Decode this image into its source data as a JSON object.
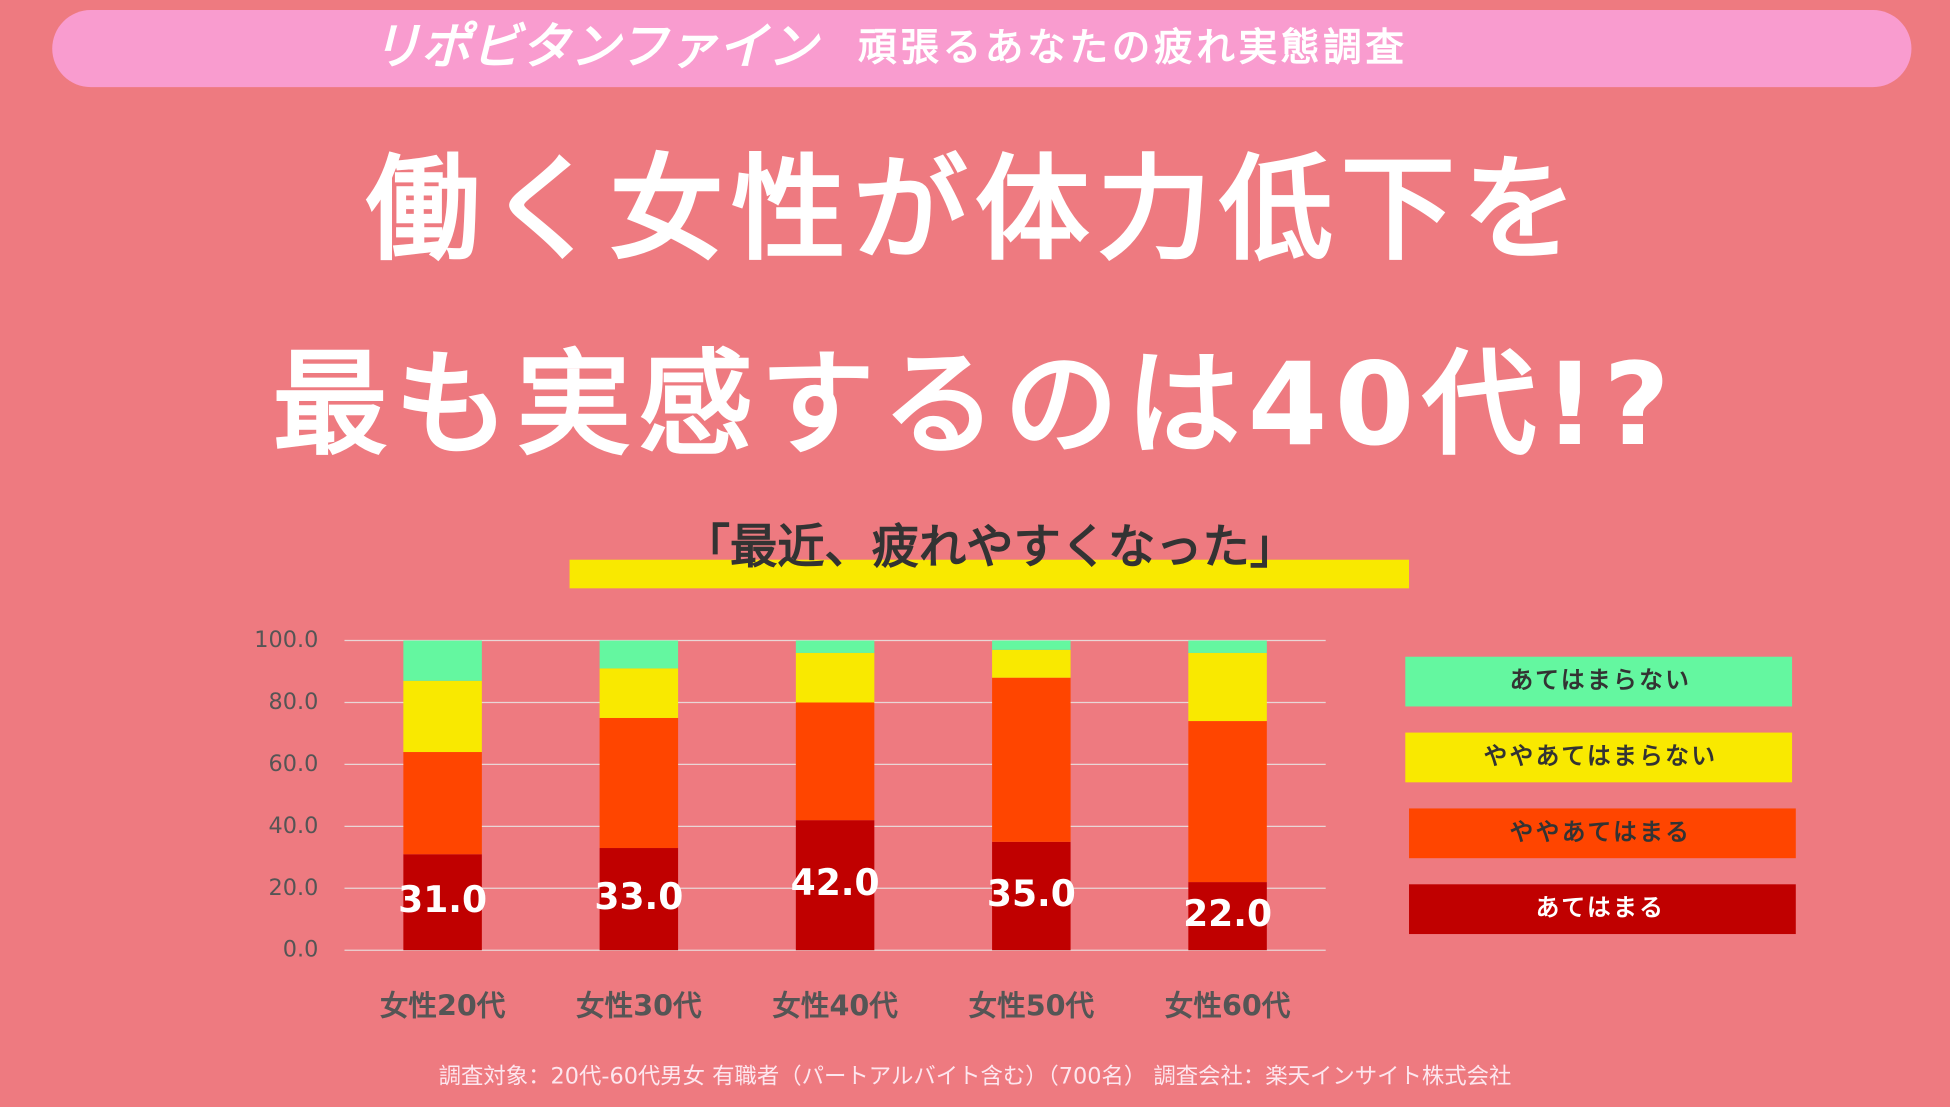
{
  "header": {
    "brand": "リポビタンファイン",
    "tagline": "頑張るあなたの疲れ実態調査"
  },
  "chart_data": {
    "type": "stacked_bar",
    "title": [
      "働く女性が体力低下を",
      "最も実感するのは40代!?"
    ],
    "subtitle": "「最近、疲れやすくなった」",
    "categories": [
      "女性20代",
      "女性30代",
      "女性40代",
      "女性50代",
      "女性60代"
    ],
    "series": [
      {
        "name": "あてはまる",
        "color": "#c00000",
        "values": [
          31,
          33,
          42,
          35,
          22
        ],
        "value_labels": [
          "31.0",
          "33.0",
          "42.0",
          "35.0",
          "22.0"
        ]
      },
      {
        "name": "ややあてはまる",
        "color": "#ff4500",
        "values": [
          33,
          42,
          38,
          53,
          52
        ]
      },
      {
        "name": "ややあてはまらない",
        "color": "#f9e900",
        "values": [
          23,
          16,
          16,
          9,
          22
        ]
      },
      {
        "name": "あてはまらない",
        "color": "#64f7a0",
        "values": [
          13,
          9,
          4,
          3,
          4
        ]
      }
    ],
    "ylim": [
      0,
      100
    ],
    "yticks": [
      {
        "value": 0,
        "label": "0.0"
      },
      {
        "value": 20,
        "label": "20.0"
      },
      {
        "value": 40,
        "label": "40.0"
      },
      {
        "value": 60,
        "label": "60.0"
      },
      {
        "value": 80,
        "label": "80.0"
      },
      {
        "value": 100,
        "label": "100.0"
      }
    ],
    "grid": true,
    "legend": "right",
    "source": "調査対象：20代-60代男女 有職者（パートアルバイト含む）（700名） 調査会社：楽天インサイト株式会社"
  }
}
